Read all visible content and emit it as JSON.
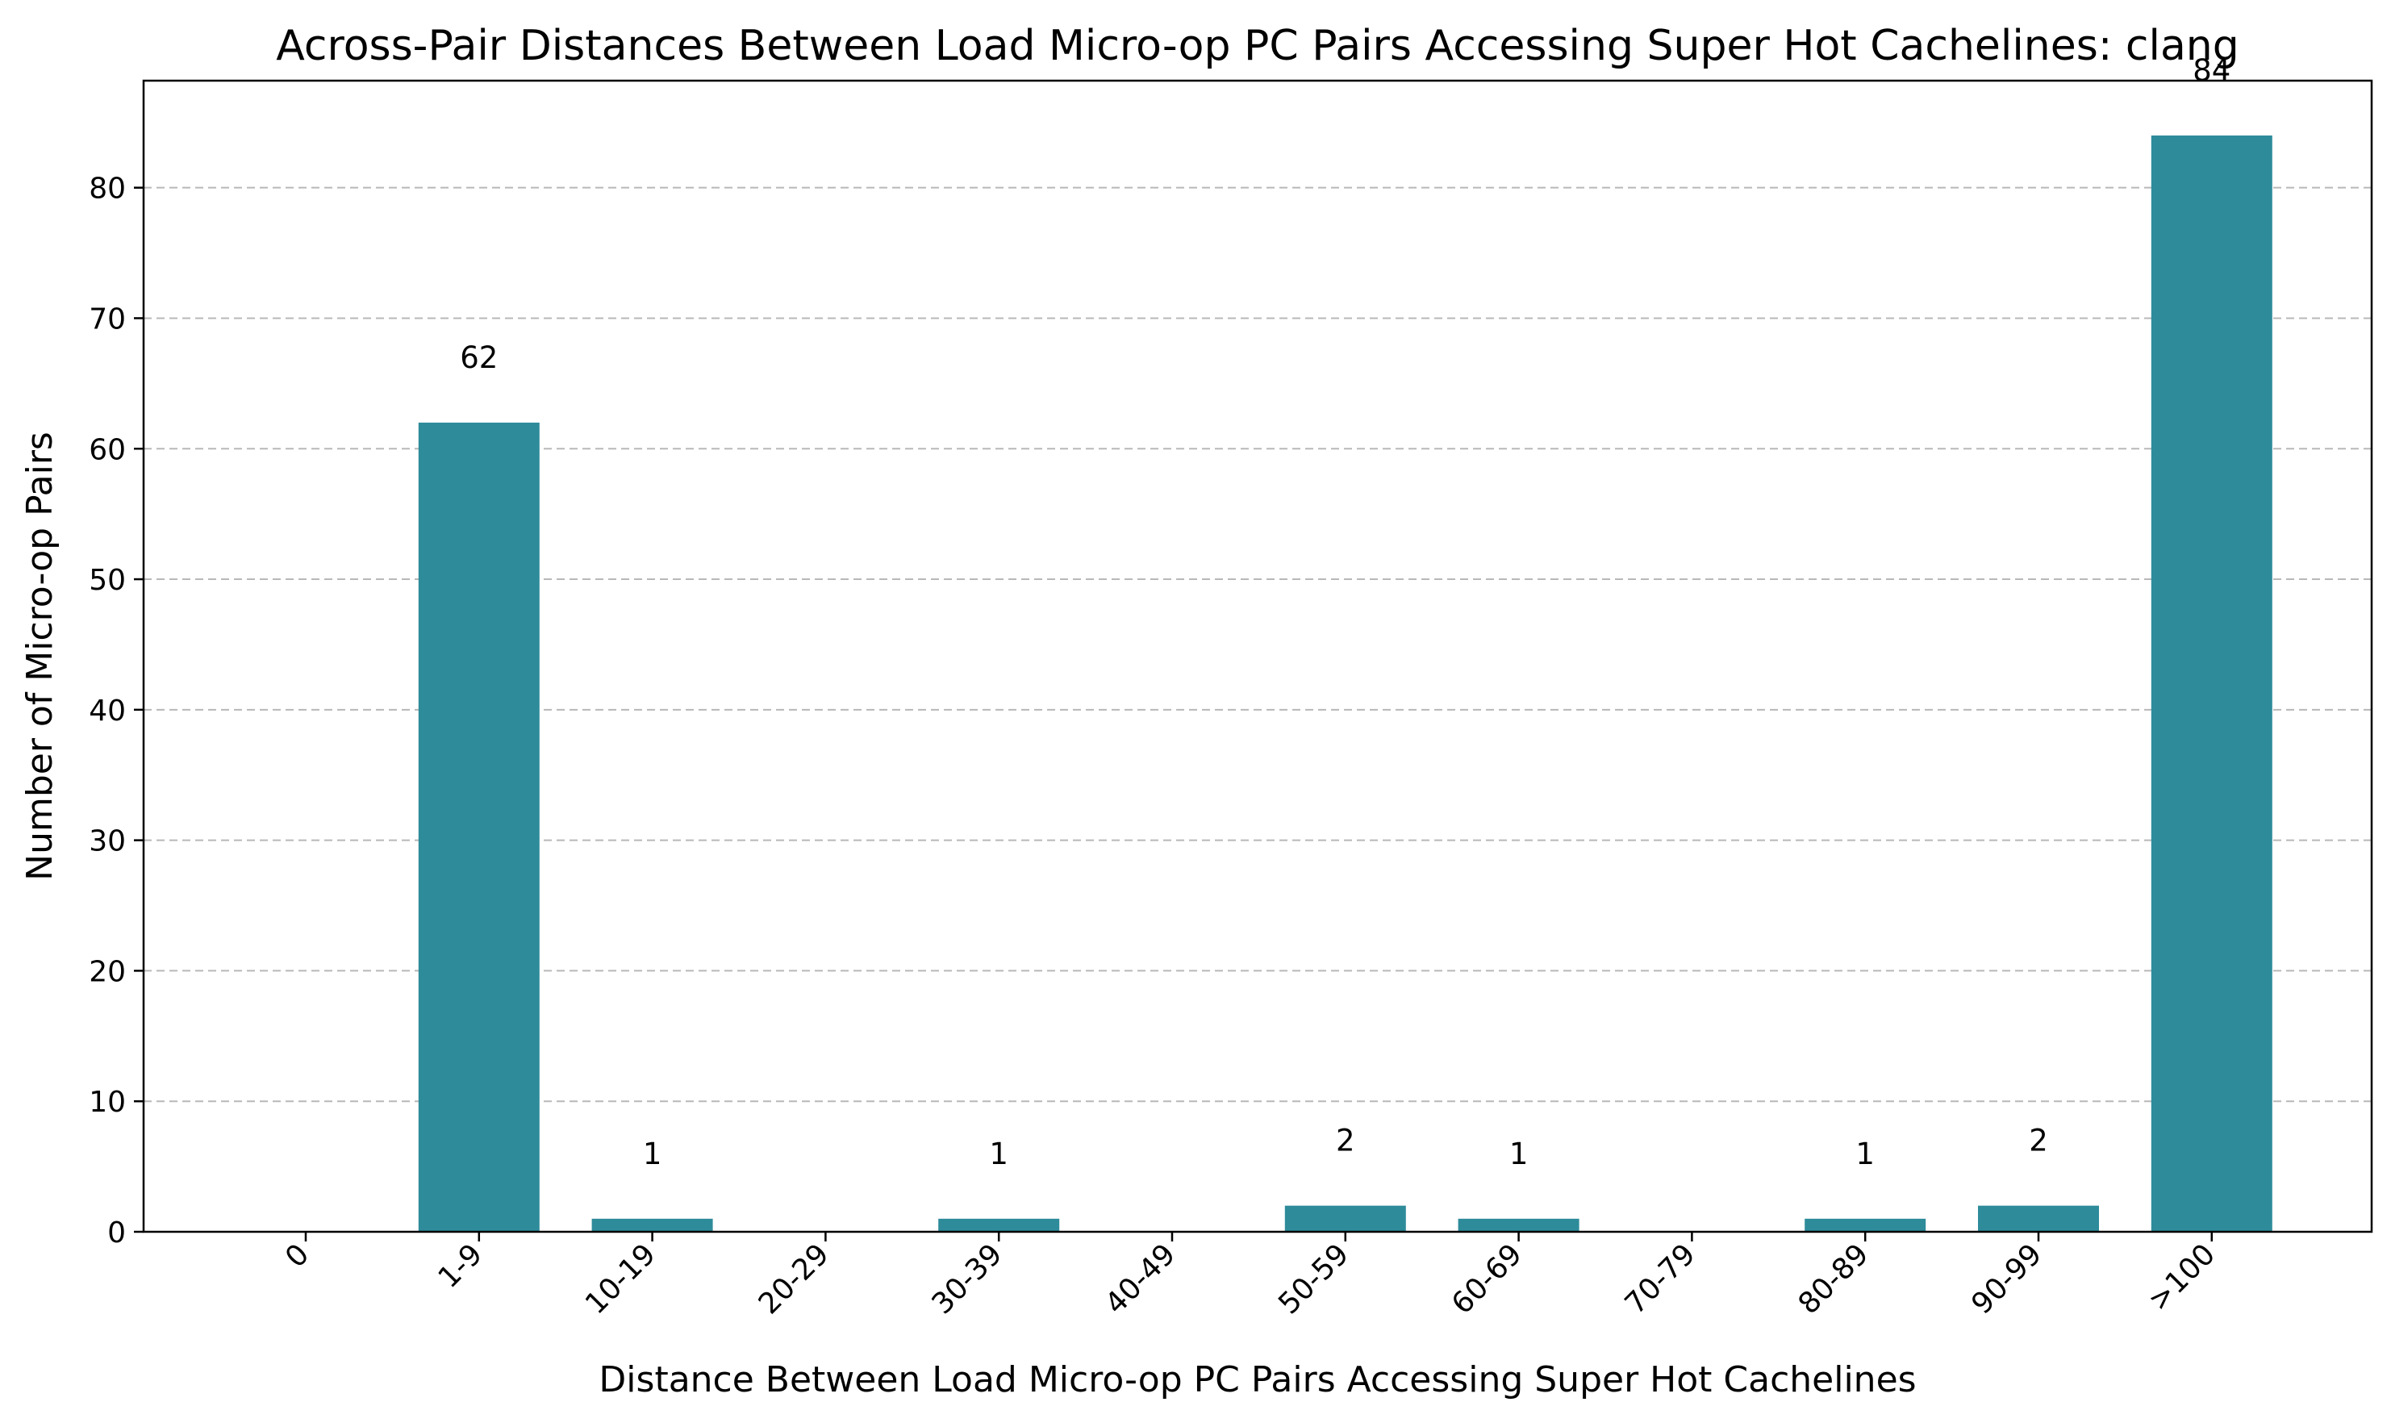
{
  "chart_data": {
    "type": "bar",
    "title": "Across-Pair Distances Between Load Micro-op PC Pairs Accessing Super Hot Cachelines: clang",
    "xlabel": "Distance Between Load Micro-op PC Pairs Accessing Super Hot Cachelines",
    "ylabel": "Number of Micro-op Pairs",
    "categories": [
      "0",
      "1-9",
      "10-19",
      "20-29",
      "30-39",
      "40-49",
      "50-59",
      "60-69",
      "70-79",
      "80-89",
      "90-99",
      ">100"
    ],
    "values": [
      0,
      62,
      1,
      0,
      1,
      0,
      2,
      1,
      0,
      1,
      2,
      84
    ],
    "data_labels": [
      "",
      "62",
      "1",
      "",
      "1",
      "",
      "2",
      "1",
      "",
      "1",
      "2",
      "84"
    ],
    "ylim": [
      0,
      88.2
    ],
    "yticks": [
      0,
      10,
      20,
      30,
      40,
      50,
      60,
      70,
      80
    ],
    "grid": "horizontal-dashed",
    "legend": "none",
    "bar_color": "#2e8b9a"
  }
}
